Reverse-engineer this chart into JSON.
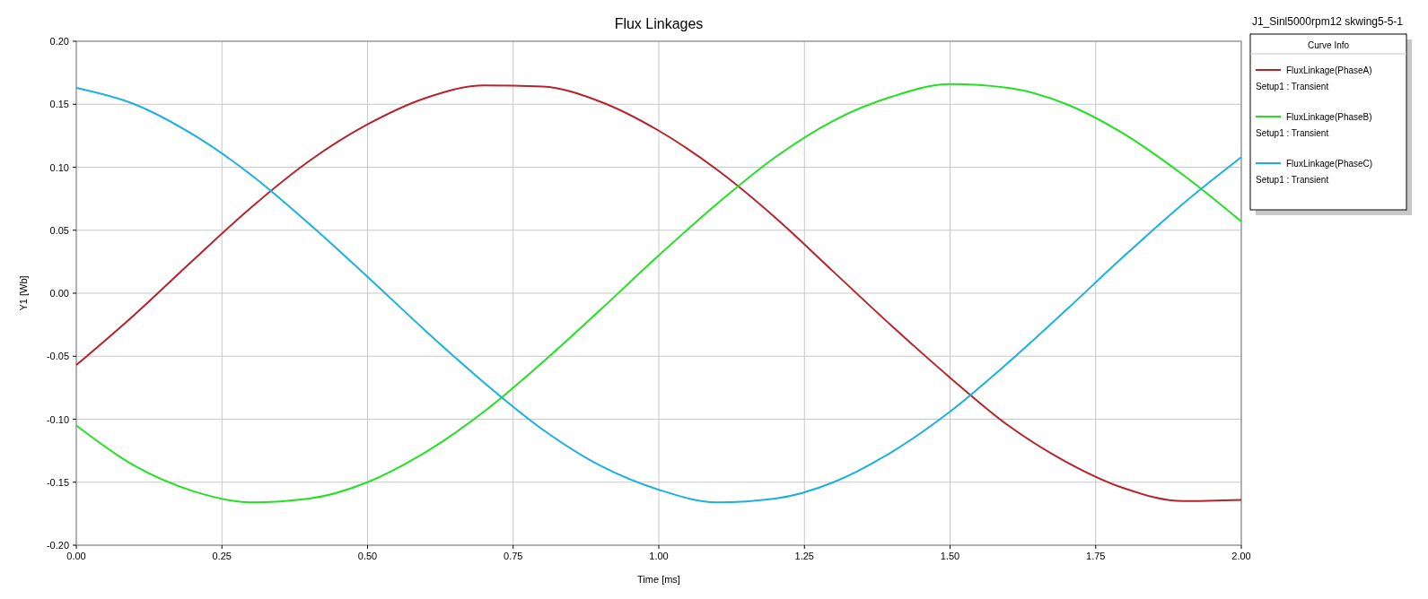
{
  "chart_data": {
    "type": "line",
    "title": "Flux Linkages",
    "annotations": [
      "J1_Sinl5000rpm12 skwing5-5-1"
    ],
    "xlabel": "Time [ms]",
    "ylabel": "Y1 [Wb]",
    "legend_title": "Curve Info",
    "legend": "right",
    "grid": true,
    "marker": "none",
    "line_style": "solid",
    "x": [
      0,
      0.1,
      0.2,
      0.3,
      0.4,
      0.5,
      0.6,
      0.7,
      0.8,
      0.9,
      1.0,
      1.1,
      1.2,
      1.3,
      1.4,
      1.5,
      1.6,
      1.7,
      1.8,
      1.9,
      2.0
    ],
    "xlim": [
      0,
      2
    ],
    "xticks": [
      {
        "value": 0,
        "label": "0.00"
      },
      {
        "value": 0.25,
        "label": "0.25"
      },
      {
        "value": 0.5,
        "label": "0.50"
      },
      {
        "value": 0.75,
        "label": "0.75"
      },
      {
        "value": 1,
        "label": "1.00"
      },
      {
        "value": 1.25,
        "label": "1.25"
      },
      {
        "value": 1.5,
        "label": "1.50"
      },
      {
        "value": 1.75,
        "label": "1.75"
      },
      {
        "value": 2,
        "label": "2.00"
      }
    ],
    "ylim": [
      -0.2,
      0.2
    ],
    "yticks": [
      {
        "value": -0.2,
        "label": "-0.20"
      },
      {
        "value": -0.15,
        "label": "-0.15"
      },
      {
        "value": -0.1,
        "label": "-0.10"
      },
      {
        "value": -0.05,
        "label": "-0.05"
      },
      {
        "value": 0,
        "label": "0.00"
      },
      {
        "value": 0.05,
        "label": "0.05"
      },
      {
        "value": 0.1,
        "label": "0.10"
      },
      {
        "value": 0.15,
        "label": "0.15"
      },
      {
        "value": 0.2,
        "label": "0.20"
      }
    ],
    "series": [
      {
        "name": "FluxLinkage(PhaseA)\nSetup1 : Transient",
        "color": "#b5242c",
        "values": [
          -0.057,
          -0.017,
          0.026,
          0.068,
          0.105,
          0.134,
          0.155,
          0.165,
          0.164,
          0.152,
          0.129,
          0.098,
          0.06,
          0.017,
          -0.026,
          -0.067,
          -0.105,
          -0.134,
          -0.155,
          -0.165,
          -0.164
        ]
      },
      {
        "name": "FluxLinkage(PhaseB)\nSetup1 : Transient",
        "color": "#22e022",
        "values": [
          -0.105,
          -0.137,
          -0.157,
          -0.166,
          -0.163,
          -0.15,
          -0.126,
          -0.094,
          -0.055,
          -0.013,
          0.03,
          0.071,
          0.108,
          0.137,
          0.156,
          0.166,
          0.163,
          0.15,
          0.126,
          0.094,
          0.057
        ]
      },
      {
        "name": "FluxLinkage(PhaseC)\nSetup1 : Transient",
        "color": "#1ab0e0",
        "values": [
          0.163,
          0.15,
          0.126,
          0.094,
          0.055,
          0.013,
          -0.03,
          -0.071,
          -0.108,
          -0.137,
          -0.156,
          -0.166,
          -0.163,
          -0.15,
          -0.126,
          -0.094,
          -0.055,
          -0.013,
          0.03,
          0.071,
          0.108
        ]
      }
    ]
  }
}
